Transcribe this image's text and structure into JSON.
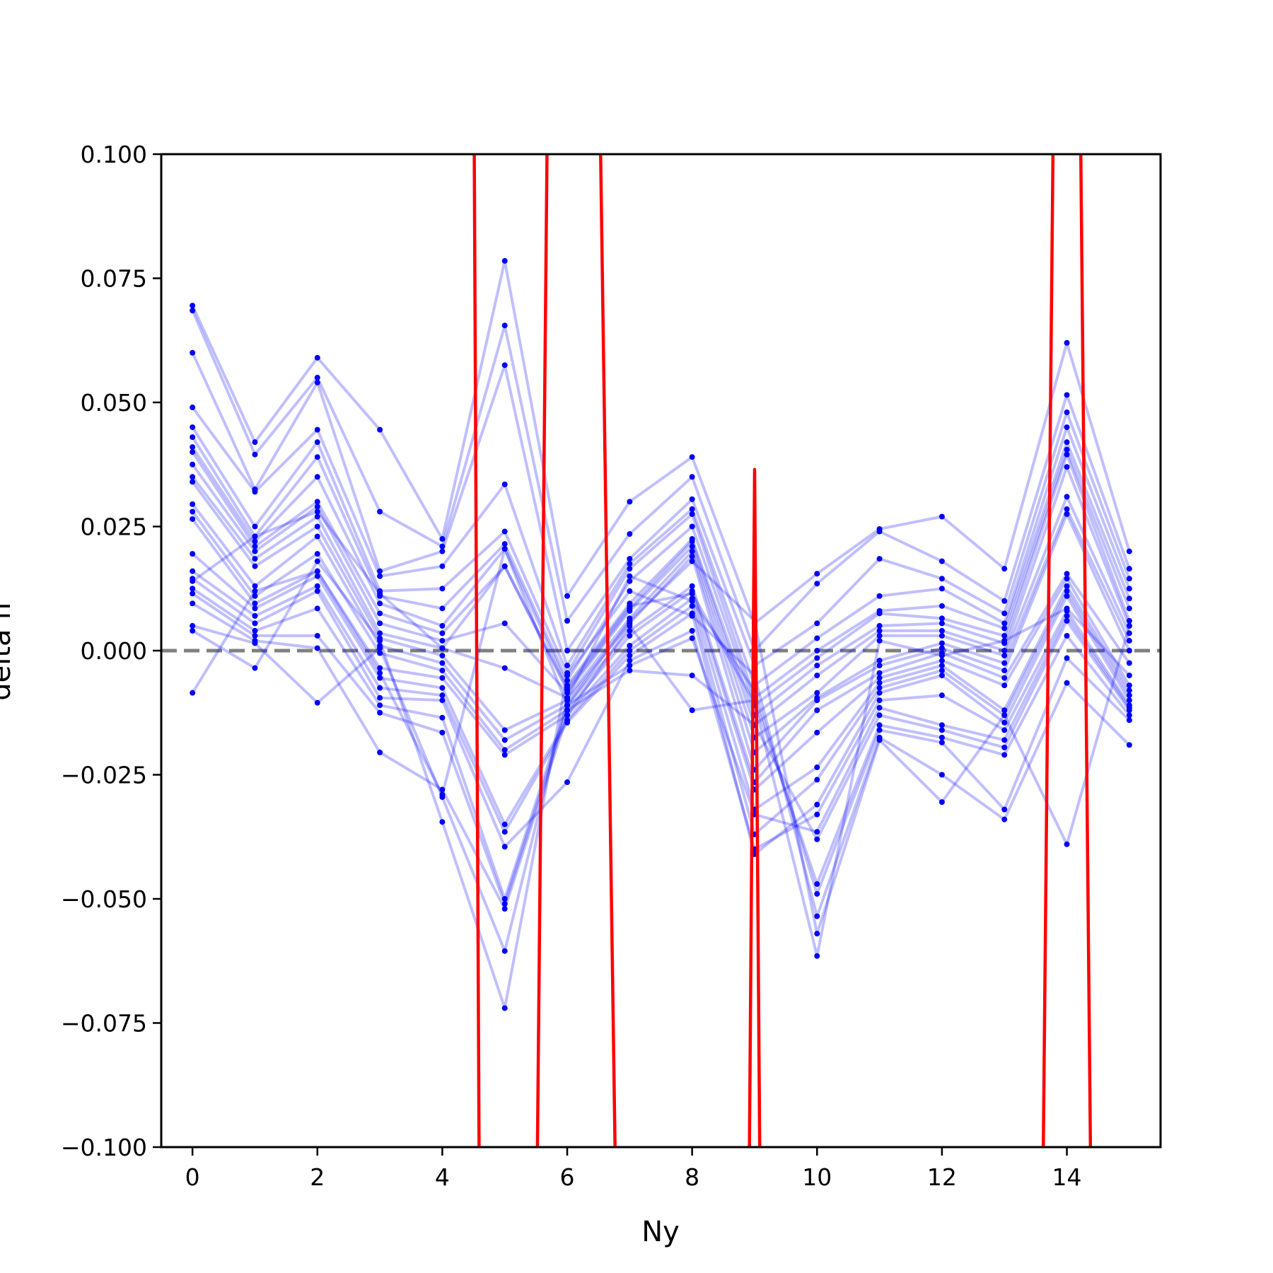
{
  "chart_data": {
    "type": "line",
    "xlabel": "Ny",
    "ylabel": "delta ff",
    "xlim": [
      -0.5,
      15.5
    ],
    "ylim": [
      -0.1,
      0.1
    ],
    "x_ticks": [
      0,
      2,
      4,
      6,
      8,
      10,
      12,
      14
    ],
    "x_tick_labels": [
      "0",
      "2",
      "4",
      "6",
      "8",
      "10",
      "12",
      "14"
    ],
    "y_ticks": [
      0.1,
      0.075,
      0.05,
      0.025,
      0.0,
      -0.025,
      -0.05,
      -0.075,
      -0.1
    ],
    "y_tick_labels": [
      "0.100",
      "0.075",
      "0.050",
      "0.025",
      "0.000",
      "−0.025",
      "−0.050",
      "−0.075",
      "−0.100"
    ],
    "reference_line": {
      "y": 0.0,
      "style": "dashed",
      "color": "#808080"
    },
    "x": [
      0,
      1,
      2,
      3,
      4,
      5,
      6,
      7,
      8,
      9,
      10,
      11,
      12,
      13,
      14,
      15
    ],
    "blue_series_color": "#0000ff",
    "red_series_color": "#ff0000",
    "series": [
      {
        "values": [
          0.0695,
          0.042,
          0.059,
          0.0445,
          0.0225,
          0.0785,
          0.011,
          0.03,
          0.039,
          0.0055,
          0.0155,
          0.0245,
          0.027,
          0.0165,
          0.062,
          0.02
        ]
      },
      {
        "values": [
          0.0685,
          0.0395,
          0.055,
          0.028,
          0.021,
          0.0655,
          0.006,
          0.0235,
          0.035,
          0.0,
          0.0135,
          0.024,
          0.018,
          0.01,
          0.0515,
          0.0165
        ]
      },
      {
        "values": [
          0.06,
          0.0325,
          0.054,
          0.016,
          0.02,
          0.0575,
          0.0,
          0.0185,
          0.0305,
          -0.003,
          0.0055,
          0.0185,
          0.0145,
          0.0075,
          0.048,
          0.0145
        ]
      },
      {
        "values": [
          0.049,
          0.032,
          0.0445,
          0.015,
          0.017,
          0.0335,
          -0.003,
          0.0175,
          0.0285,
          -0.007,
          0.0025,
          0.011,
          0.0125,
          0.0055,
          0.045,
          0.0125
        ]
      },
      {
        "values": [
          0.045,
          0.025,
          0.042,
          0.012,
          0.0125,
          0.024,
          -0.0045,
          0.0165,
          0.0275,
          -0.0095,
          0.0,
          0.008,
          0.009,
          0.0045,
          0.042,
          0.0105
        ]
      },
      {
        "values": [
          0.043,
          0.023,
          0.039,
          0.011,
          0.0085,
          0.0215,
          -0.006,
          0.014,
          0.025,
          -0.011,
          -0.0015,
          0.0075,
          0.0065,
          0.003,
          0.0405,
          0.0085
        ]
      },
      {
        "values": [
          0.041,
          0.022,
          0.035,
          0.0095,
          0.005,
          0.0205,
          -0.007,
          0.0095,
          0.0225,
          -0.013,
          -0.003,
          0.005,
          0.0055,
          0.0015,
          0.0395,
          0.006
        ]
      },
      {
        "values": [
          0.04,
          0.021,
          0.03,
          0.0075,
          0.0035,
          0.017,
          -0.008,
          0.0085,
          0.022,
          -0.015,
          -0.005,
          0.004,
          0.004,
          0.0,
          0.037,
          0.005
        ]
      },
      {
        "values": [
          0.0375,
          0.02,
          0.029,
          0.0055,
          0.002,
          0.0055,
          -0.0085,
          0.008,
          0.021,
          -0.0175,
          -0.0085,
          0.003,
          0.003,
          -0.001,
          0.031,
          0.0035
        ]
      },
      {
        "values": [
          0.035,
          0.0185,
          0.027,
          0.0035,
          0.0005,
          -0.0035,
          -0.0095,
          0.0065,
          0.02,
          -0.0205,
          -0.0095,
          -0.002,
          0.0015,
          -0.0025,
          0.0285,
          0.002
        ]
      },
      {
        "values": [
          0.034,
          0.017,
          0.025,
          0.0025,
          -0.001,
          -0.016,
          -0.01,
          0.0055,
          0.019,
          -0.024,
          -0.01,
          -0.003,
          0.0005,
          -0.004,
          0.0275,
          0.0
        ]
      },
      {
        "values": [
          0.0295,
          0.013,
          0.023,
          0.001,
          -0.0025,
          -0.018,
          -0.011,
          0.004,
          0.013,
          -0.0265,
          -0.012,
          -0.0045,
          -0.0005,
          -0.0055,
          0.0155,
          -0.0025
        ]
      },
      {
        "values": [
          0.028,
          0.011,
          0.0195,
          -0.0005,
          -0.004,
          -0.02,
          -0.012,
          0.003,
          0.012,
          -0.028,
          -0.0165,
          -0.0055,
          -0.002,
          -0.007,
          0.0145,
          -0.007
        ]
      },
      {
        "values": [
          0.0265,
          0.0095,
          0.016,
          -0.0035,
          -0.0055,
          -0.021,
          -0.013,
          0.001,
          0.0105,
          -0.032,
          -0.0235,
          -0.0065,
          -0.003,
          -0.012,
          0.013,
          -0.008
        ]
      },
      {
        "values": [
          0.0195,
          0.0085,
          0.015,
          -0.0055,
          -0.0075,
          -0.035,
          -0.014,
          0.0,
          0.009,
          -0.037,
          -0.026,
          -0.0075,
          -0.004,
          -0.013,
          0.012,
          -0.009
        ]
      },
      {
        "values": [
          0.016,
          0.007,
          0.013,
          -0.0075,
          -0.009,
          -0.0365,
          -0.0145,
          -0.001,
          0.0075,
          -0.041,
          -0.031,
          -0.0085,
          -0.005,
          -0.0145,
          0.011,
          -0.01
        ]
      },
      {
        "values": [
          0.0145,
          0.0055,
          0.012,
          -0.0095,
          -0.01,
          -0.0395,
          -0.0265,
          -0.002,
          0.004,
          -0.04,
          -0.033,
          -0.01,
          -0.009,
          -0.016,
          0.008,
          -0.011
        ]
      },
      {
        "values": [
          0.0125,
          0.004,
          0.0085,
          -0.011,
          -0.0135,
          -0.05,
          -0.011,
          -0.003,
          0.0025,
          -0.033,
          -0.0365,
          -0.0115,
          -0.015,
          -0.018,
          0.007,
          -0.0115
        ]
      },
      {
        "values": [
          0.0115,
          0.003,
          0.003,
          -0.0125,
          -0.0165,
          -0.051,
          -0.012,
          -0.004,
          -0.005,
          -0.015,
          -0.038,
          -0.013,
          -0.016,
          -0.0195,
          0.006,
          -0.012
        ]
      },
      {
        "values": [
          0.0095,
          0.002,
          0.0005,
          -0.0205,
          -0.028,
          -0.052,
          -0.013,
          0.005,
          -0.012,
          -0.01,
          -0.047,
          -0.015,
          -0.0175,
          -0.021,
          0.003,
          -0.013
        ]
      },
      {
        "values": [
          0.005,
          0.0015,
          -0.0105,
          0.0005,
          -0.0295,
          -0.0605,
          -0.0095,
          0.015,
          0.01,
          -0.008,
          -0.049,
          -0.016,
          -0.0185,
          -0.032,
          -0.0015,
          -0.014
        ]
      },
      {
        "values": [
          0.004,
          -0.0035,
          0.018,
          0.002,
          -0.0345,
          -0.072,
          -0.005,
          0.012,
          0.007,
          -0.005,
          -0.0535,
          -0.0175,
          -0.025,
          -0.034,
          -0.0065,
          -0.019
        ]
      },
      {
        "values": [
          -0.0085,
          0.012,
          0.016,
          -0.0045,
          -0.029,
          0.0205,
          -0.011,
          0.006,
          0.018,
          0.006,
          -0.057,
          -0.018,
          -0.0305,
          -0.013,
          -0.039,
          0.005
        ]
      },
      {
        "values": [
          0.014,
          0.023,
          0.028,
          0.0115,
          0.0005,
          0.017,
          -0.0075,
          0.009,
          0.0115,
          -0.0105,
          -0.0615,
          0.002,
          -0.001,
          0.002,
          0.0085,
          -0.005
        ]
      }
    ],
    "red_line": {
      "points": [
        [
          4.5,
          0.13
        ],
        [
          4.6,
          -0.13
        ],
        [
          5.5,
          -0.13
        ],
        [
          5.7,
          0.13
        ],
        [
          6.5,
          0.13
        ],
        [
          6.8,
          -0.13
        ],
        [
          8.9,
          -0.13
        ],
        [
          9.0,
          0.0365
        ],
        [
          9.1,
          -0.13
        ],
        [
          13.6,
          -0.13
        ],
        [
          13.8,
          0.13
        ],
        [
          14.2,
          0.13
        ],
        [
          14.4,
          -0.13
        ]
      ]
    }
  }
}
